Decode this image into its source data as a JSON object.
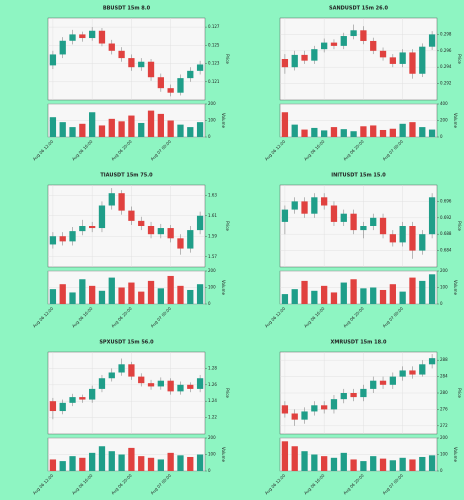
{
  "chart_data": [
    {
      "type": "candlestick",
      "title": "BBUSDT 15m 8.0",
      "ylabel": "Price",
      "y2label": "Volume",
      "up_color": "#1f9e89",
      "down_color": "#e0413f",
      "grid": true,
      "categories": [
        "Aug 06 12:00",
        null,
        null,
        null,
        "Aug 06 16:00",
        null,
        null,
        null,
        "Aug 06 20:00",
        null,
        null,
        null,
        "Aug 07 00:00",
        null,
        null,
        null
      ],
      "open": [
        0.1228,
        0.124,
        0.1255,
        0.1262,
        0.1258,
        0.1266,
        0.1252,
        0.1244,
        0.1236,
        0.1226,
        0.1232,
        0.1215,
        0.1203,
        0.1198,
        0.1214,
        0.1222
      ],
      "high": [
        0.1244,
        0.1259,
        0.1267,
        0.1265,
        0.127,
        0.1269,
        0.1256,
        0.1248,
        0.124,
        0.1236,
        0.1235,
        0.1219,
        0.1207,
        0.1218,
        0.1226,
        0.1233
      ],
      "low": [
        0.1224,
        0.1236,
        0.1251,
        0.1254,
        0.1255,
        0.1249,
        0.124,
        0.1232,
        0.1222,
        0.1222,
        0.1211,
        0.1199,
        0.1194,
        0.1195,
        0.121,
        0.1218
      ],
      "close": [
        0.124,
        0.1255,
        0.1262,
        0.1258,
        0.1266,
        0.1252,
        0.1244,
        0.1236,
        0.1226,
        0.1232,
        0.1215,
        0.1203,
        0.1198,
        0.1214,
        0.1222,
        0.1229
      ],
      "volume": [
        120,
        90,
        60,
        80,
        150,
        70,
        110,
        95,
        130,
        85,
        160,
        140,
        100,
        75,
        60,
        90
      ],
      "ylim": [
        0.119,
        0.128
      ],
      "yticks": [
        0.121,
        0.123,
        0.125,
        0.127
      ],
      "y2lim": [
        0,
        200
      ],
      "y2ticks": [
        0,
        100,
        200
      ]
    },
    {
      "type": "candlestick",
      "title": "SANDUSDT 15m 26.0",
      "ylabel": "Price",
      "y2label": "Volume",
      "up_color": "#1f9e89",
      "down_color": "#e0413f",
      "grid": true,
      "categories": [
        "Aug 06 12:00",
        null,
        null,
        null,
        "Aug 06 16:00",
        null,
        null,
        null,
        "Aug 06 20:00",
        null,
        null,
        null,
        "Aug 07 00:00",
        null,
        null,
        null
      ],
      "open": [
        0.295,
        0.294,
        0.2955,
        0.2948,
        0.2962,
        0.297,
        0.2966,
        0.2978,
        0.2985,
        0.2972,
        0.296,
        0.2952,
        0.2944,
        0.2958,
        0.2932,
        0.2965
      ],
      "high": [
        0.2956,
        0.296,
        0.296,
        0.2966,
        0.2975,
        0.2974,
        0.2982,
        0.2992,
        0.299,
        0.2976,
        0.2964,
        0.2956,
        0.2962,
        0.2962,
        0.2969,
        0.2984
      ],
      "low": [
        0.2932,
        0.2936,
        0.2944,
        0.2944,
        0.2958,
        0.2962,
        0.2962,
        0.2974,
        0.2968,
        0.2956,
        0.2948,
        0.294,
        0.294,
        0.2926,
        0.2928,
        0.2961
      ],
      "close": [
        0.294,
        0.2955,
        0.2948,
        0.2962,
        0.297,
        0.2966,
        0.2978,
        0.2985,
        0.2972,
        0.296,
        0.2952,
        0.2944,
        0.2958,
        0.2932,
        0.2965,
        0.298
      ],
      "volume": [
        300,
        150,
        90,
        110,
        80,
        120,
        95,
        70,
        130,
        140,
        85,
        100,
        160,
        180,
        120,
        90
      ],
      "ylim": [
        0.29,
        0.3
      ],
      "yticks": [
        0.292,
        0.294,
        0.296,
        0.298
      ],
      "y2lim": [
        0,
        400
      ],
      "y2ticks": [
        0,
        200,
        400
      ]
    },
    {
      "type": "candlestick",
      "title": "TIAUSDT 15m 75.0",
      "ylabel": "Price",
      "y2label": "Volume",
      "up_color": "#1f9e89",
      "down_color": "#e0413f",
      "grid": true,
      "categories": [
        "Aug 06 12:00",
        null,
        null,
        null,
        "Aug 06 16:00",
        null,
        null,
        null,
        "Aug 06 20:00",
        null,
        null,
        null,
        "Aug 07 00:00",
        null,
        null,
        null
      ],
      "open": [
        1.582,
        1.59,
        1.585,
        1.595,
        1.6,
        1.598,
        1.62,
        1.632,
        1.615,
        1.605,
        1.6,
        1.592,
        1.598,
        1.588,
        1.578,
        1.596
      ],
      "high": [
        1.594,
        1.594,
        1.599,
        1.606,
        1.604,
        1.624,
        1.637,
        1.635,
        1.619,
        1.609,
        1.604,
        1.602,
        1.601,
        1.592,
        1.6,
        1.614
      ],
      "low": [
        1.578,
        1.581,
        1.581,
        1.591,
        1.594,
        1.594,
        1.616,
        1.611,
        1.601,
        1.596,
        1.588,
        1.588,
        1.584,
        1.572,
        1.574,
        1.592
      ],
      "close": [
        1.59,
        1.585,
        1.595,
        1.6,
        1.598,
        1.62,
        1.632,
        1.615,
        1.605,
        1.6,
        1.592,
        1.598,
        1.588,
        1.578,
        1.596,
        1.61
      ],
      "volume": [
        90,
        120,
        70,
        150,
        110,
        80,
        160,
        100,
        130,
        75,
        140,
        95,
        170,
        110,
        85,
        120
      ],
      "ylim": [
        1.56,
        1.64
      ],
      "yticks": [
        1.57,
        1.59,
        1.61,
        1.63
      ],
      "y2lim": [
        0,
        200
      ],
      "y2ticks": [
        0,
        100,
        200
      ]
    },
    {
      "type": "candlestick",
      "title": "INITUSDT 15m 15.0",
      "ylabel": "Price",
      "y2label": "Volume",
      "up_color": "#1f9e89",
      "down_color": "#e0413f",
      "grid": true,
      "categories": [
        "Aug 06 12:00",
        null,
        null,
        null,
        "Aug 06 16:00",
        null,
        null,
        null,
        "Aug 06 20:00",
        null,
        null,
        null,
        "Aug 07 00:00",
        null,
        null,
        null
      ],
      "open": [
        0.691,
        0.694,
        0.696,
        0.693,
        0.697,
        0.695,
        0.691,
        0.693,
        0.689,
        0.69,
        0.692,
        0.688,
        0.686,
        0.69,
        0.684,
        0.688
      ],
      "high": [
        0.695,
        0.697,
        0.697,
        0.698,
        0.698,
        0.696,
        0.694,
        0.694,
        0.691,
        0.693,
        0.693,
        0.689,
        0.691,
        0.691,
        0.689,
        0.698
      ],
      "low": [
        0.688,
        0.693,
        0.692,
        0.692,
        0.694,
        0.69,
        0.69,
        0.688,
        0.687,
        0.689,
        0.687,
        0.685,
        0.685,
        0.682,
        0.683,
        0.687
      ],
      "close": [
        0.694,
        0.696,
        0.693,
        0.697,
        0.695,
        0.691,
        0.693,
        0.689,
        0.69,
        0.692,
        0.688,
        0.686,
        0.69,
        0.684,
        0.688,
        0.697
      ],
      "volume": [
        60,
        90,
        140,
        80,
        110,
        70,
        130,
        150,
        95,
        100,
        85,
        120,
        75,
        160,
        140,
        180
      ],
      "ylim": [
        0.68,
        0.7
      ],
      "yticks": [
        0.684,
        0.688,
        0.692,
        0.696
      ],
      "y2lim": [
        0,
        200
      ],
      "y2ticks": [
        0,
        100,
        200
      ]
    },
    {
      "type": "candlestick",
      "title": "SPXUSDT 15m 56.0",
      "ylabel": "Price",
      "y2label": "Volume",
      "up_color": "#1f9e89",
      "down_color": "#e0413f",
      "grid": true,
      "categories": [
        "Aug 06 12:00",
        null,
        null,
        null,
        "Aug 06 16:00",
        null,
        null,
        null,
        "Aug 06 20:00",
        null,
        null,
        null,
        "Aug 07 00:00",
        null,
        null,
        null
      ],
      "open": [
        1.24,
        1.228,
        1.238,
        1.245,
        1.242,
        1.255,
        1.268,
        1.275,
        1.285,
        1.27,
        1.262,
        1.258,
        1.265,
        1.252,
        1.26,
        1.255
      ],
      "high": [
        1.244,
        1.242,
        1.249,
        1.248,
        1.259,
        1.272,
        1.28,
        1.292,
        1.288,
        1.274,
        1.266,
        1.269,
        1.268,
        1.264,
        1.263,
        1.272
      ],
      "low": [
        1.218,
        1.224,
        1.234,
        1.238,
        1.238,
        1.251,
        1.264,
        1.271,
        1.266,
        1.258,
        1.254,
        1.254,
        1.248,
        1.248,
        1.251,
        1.251
      ],
      "close": [
        1.228,
        1.238,
        1.245,
        1.242,
        1.255,
        1.268,
        1.275,
        1.285,
        1.27,
        1.262,
        1.258,
        1.265,
        1.252,
        1.26,
        1.255,
        1.268
      ],
      "volume": [
        70,
        60,
        90,
        80,
        110,
        150,
        120,
        100,
        140,
        90,
        80,
        70,
        110,
        95,
        85,
        100
      ],
      "ylim": [
        1.2,
        1.3
      ],
      "yticks": [
        1.22,
        1.24,
        1.26,
        1.28
      ],
      "y2lim": [
        0,
        200
      ],
      "y2ticks": [
        0,
        100,
        200
      ]
    },
    {
      "type": "candlestick",
      "title": "XMRUSDT 15m 18.0",
      "ylabel": "Price",
      "y2label": "Volume",
      "up_color": "#1f9e89",
      "down_color": "#e0413f",
      "grid": true,
      "categories": [
        "Aug 06 12:00",
        null,
        null,
        null,
        "Aug 06 16:00",
        null,
        null,
        null,
        "Aug 06 20:00",
        null,
        null,
        null,
        "Aug 07 00:00",
        null,
        null,
        null
      ],
      "open": [
        277,
        275,
        273.5,
        275.5,
        277,
        276,
        278.5,
        280,
        279,
        281,
        283,
        282,
        284,
        285.5,
        284.5,
        287
      ],
      "high": [
        278,
        276,
        276.5,
        278,
        278,
        279.5,
        281,
        281,
        282,
        284,
        284,
        285,
        286.5,
        286.5,
        288,
        289.5
      ],
      "low": [
        274,
        272,
        272.5,
        274.5,
        275,
        275,
        277.5,
        278,
        278,
        280,
        281,
        281,
        283,
        283.5,
        284,
        286
      ],
      "close": [
        275,
        273.5,
        275.5,
        277,
        276,
        278.5,
        280,
        279,
        281,
        283,
        282,
        284,
        285.5,
        284.5,
        287,
        288.5
      ],
      "volume": [
        180,
        150,
        120,
        100,
        90,
        80,
        110,
        70,
        60,
        90,
        75,
        65,
        80,
        70,
        85,
        95
      ],
      "ylim": [
        270,
        290
      ],
      "yticks": [
        272,
        276,
        280,
        284,
        288
      ],
      "y2lim": [
        0,
        200
      ],
      "y2ticks": [
        0,
        100,
        200
      ]
    }
  ]
}
